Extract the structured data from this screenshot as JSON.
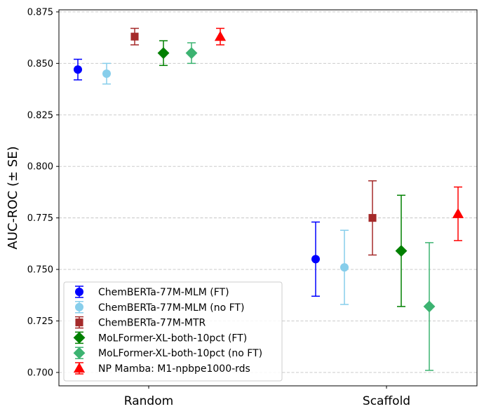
{
  "chart_data": {
    "type": "scatter",
    "title": "",
    "xlabel": "",
    "ylabel": "AUC-ROC (± SE)",
    "ylim": [
      0.6935,
      0.876
    ],
    "yticks": [
      "0.700",
      "0.725",
      "0.750",
      "0.775",
      "0.800",
      "0.825",
      "0.850",
      "0.875"
    ],
    "categories": [
      "Random",
      "Scaffold"
    ],
    "grid": "horizontal dashed",
    "legend_position": "lower-left",
    "series": [
      {
        "name": "ChemBERTa-77M-MLM (FT)",
        "color": "#0000ff",
        "marker": "circle",
        "values": [
          0.847,
          0.755
        ],
        "errors": [
          0.005,
          0.018
        ]
      },
      {
        "name": "ChemBERTa-77M-MLM (no FT)",
        "color": "#87ceeb",
        "marker": "circle",
        "values": [
          0.845,
          0.751
        ],
        "errors": [
          0.005,
          0.018
        ]
      },
      {
        "name": "ChemBERTa-77M-MTR",
        "color": "#a52a2a",
        "marker": "square",
        "values": [
          0.863,
          0.775
        ],
        "errors": [
          0.004,
          0.018
        ]
      },
      {
        "name": "MoLFormer-XL-both-10pct (FT)",
        "color": "#008000",
        "marker": "diamond",
        "values": [
          0.855,
          0.759
        ],
        "errors": [
          0.006,
          0.027
        ]
      },
      {
        "name": "MoLFormer-XL-both-10pct (no FT)",
        "color": "#3cb371",
        "marker": "diamond",
        "values": [
          0.855,
          0.732
        ],
        "errors": [
          0.005,
          0.031
        ]
      },
      {
        "name": "NP Mamba: M1-npbpe1000-rds",
        "color": "#ff0000",
        "marker": "triangle",
        "values": [
          0.863,
          0.777
        ],
        "errors": [
          0.004,
          0.013
        ]
      }
    ]
  }
}
